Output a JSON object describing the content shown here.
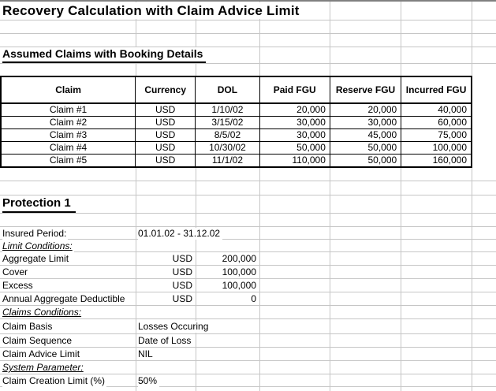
{
  "title": "Recovery Calculation with Claim Advice Limit",
  "claims_section": {
    "heading": "Assumed Claims with Booking Details"
  },
  "claims_table": {
    "headers": [
      "Claim",
      "Currency",
      "DOL",
      "Paid FGU",
      "Reserve FGU",
      "Incurred FGU"
    ],
    "rows": [
      {
        "claim": "Claim #1",
        "currency": "USD",
        "dol": "1/10/02",
        "paid": "20,000",
        "reserve": "20,000",
        "incurred": "40,000"
      },
      {
        "claim": "Claim #2",
        "currency": "USD",
        "dol": "3/15/02",
        "paid": "30,000",
        "reserve": "30,000",
        "incurred": "60,000"
      },
      {
        "claim": "Claim #3",
        "currency": "USD",
        "dol": "8/5/02",
        "paid": "30,000",
        "reserve": "45,000",
        "incurred": "75,000"
      },
      {
        "claim": "Claim #4",
        "currency": "USD",
        "dol": "10/30/02",
        "paid": "50,000",
        "reserve": "50,000",
        "incurred": "100,000"
      },
      {
        "claim": "Claim #5",
        "currency": "USD",
        "dol": "11/1/02",
        "paid": "110,000",
        "reserve": "50,000",
        "incurred": "160,000"
      }
    ]
  },
  "protection": {
    "heading": "Protection 1",
    "insured_period": {
      "label": "Insured Period:",
      "value": "01.01.02 - 31.12.02"
    },
    "limit_conditions_label": "Limit Conditions:",
    "aggregate_limit": {
      "label": "Aggregate Limit",
      "currency": "USD",
      "amount": "200,000"
    },
    "cover": {
      "label": "Cover",
      "currency": "USD",
      "amount": "100,000"
    },
    "excess": {
      "label": "Excess",
      "currency": "USD",
      "amount": "100,000"
    },
    "annual_aggregate_deductible": {
      "label": "Annual Aggregate Deductible",
      "currency": "USD",
      "amount": "0"
    },
    "claims_conditions_label": "Claims Conditions:",
    "claim_basis": {
      "label": "Claim Basis",
      "value": "Losses Occuring"
    },
    "claim_sequence": {
      "label": "Claim Sequence",
      "value": "Date of Loss"
    },
    "claim_advice_limit": {
      "label": "Claim Advice Limit",
      "value": "NIL"
    },
    "system_parameter_label": "System Parameter:",
    "claim_creation_limit": {
      "label": "Claim Creation Limit (%)",
      "value": "50%"
    }
  },
  "colors": {
    "gridline": "#c6c6c6",
    "table_border": "#000000",
    "background": "#ffffff",
    "top_edge": "#808080"
  }
}
